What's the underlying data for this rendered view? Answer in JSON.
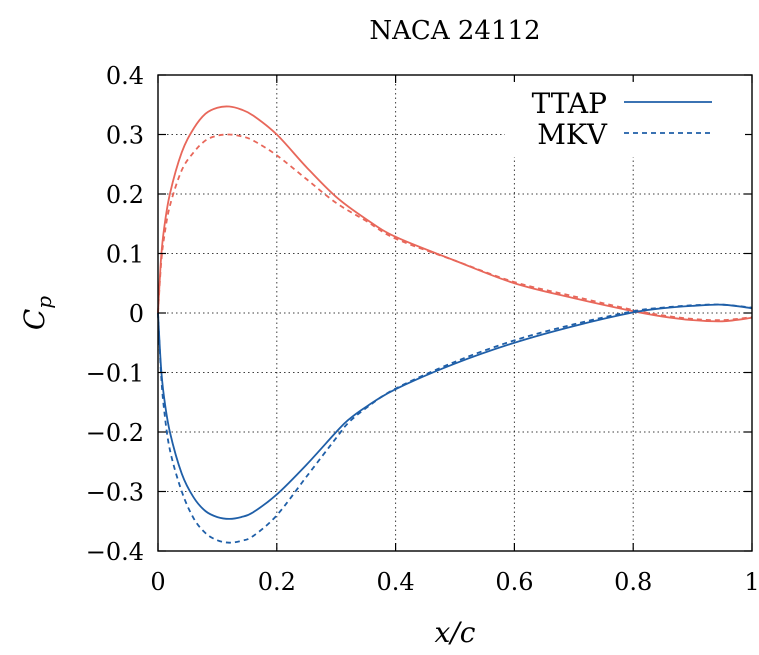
{
  "chart_data": {
    "type": "line",
    "title": "NACA 24112",
    "xlabel": "x/c",
    "ylabel": "C_p",
    "xlim": [
      0,
      1
    ],
    "ylim": [
      -0.4,
      0.4
    ],
    "x_ticks": [
      0,
      0.2,
      0.4,
      0.6,
      0.8,
      1
    ],
    "x_tick_labels": [
      "0",
      "0.2",
      "0.4",
      "0.6",
      "0.8",
      "1"
    ],
    "y_ticks": [
      -0.4,
      -0.3,
      -0.2,
      -0.1,
      0,
      0.1,
      0.2,
      0.3,
      0.4
    ],
    "y_tick_labels": [
      "−0.4",
      "−0.3",
      "−0.2",
      "−0.1",
      "0",
      "0.1",
      "0.2",
      "0.3",
      "0.4"
    ],
    "grid": true,
    "legend_position": "top-right",
    "legend": [
      {
        "label": "TTAP",
        "style": "solid",
        "color": "#1f5fa8"
      },
      {
        "label": "MKV",
        "style": "dashed",
        "color": "#1f5fa8"
      }
    ],
    "colors": {
      "upper": "#e8675a",
      "lower": "#1f5fa8"
    },
    "series": [
      {
        "method": "TTAP",
        "surface": "upper",
        "style": "solid",
        "color": "#e8675a",
        "x": [
          0,
          0.005,
          0.01,
          0.02,
          0.04,
          0.06,
          0.08,
          0.1,
          0.12,
          0.14,
          0.16,
          0.2,
          0.25,
          0.3,
          0.35,
          0.4,
          0.5,
          0.6,
          0.7,
          0.8,
          0.85,
          0.9,
          0.95,
          1.0
        ],
        "y": [
          0,
          0.09,
          0.14,
          0.2,
          0.27,
          0.31,
          0.335,
          0.345,
          0.347,
          0.342,
          0.332,
          0.3,
          0.245,
          0.195,
          0.158,
          0.128,
          0.088,
          0.05,
          0.025,
          0.003,
          -0.006,
          -0.012,
          -0.014,
          -0.008
        ]
      },
      {
        "method": "MKV",
        "surface": "upper",
        "style": "dashed",
        "color": "#e8675a",
        "x": [
          0,
          0.005,
          0.01,
          0.02,
          0.04,
          0.06,
          0.08,
          0.1,
          0.12,
          0.14,
          0.16,
          0.2,
          0.25,
          0.3,
          0.35,
          0.4,
          0.5,
          0.6,
          0.7,
          0.8,
          0.85,
          0.9,
          0.95,
          1.0
        ],
        "y": [
          0,
          0.08,
          0.125,
          0.18,
          0.24,
          0.27,
          0.29,
          0.298,
          0.3,
          0.297,
          0.29,
          0.265,
          0.225,
          0.185,
          0.155,
          0.125,
          0.088,
          0.052,
          0.028,
          0.005,
          -0.004,
          -0.01,
          -0.012,
          -0.007
        ]
      },
      {
        "method": "TTAP",
        "surface": "lower",
        "style": "solid",
        "color": "#1f5fa8",
        "x": [
          0,
          0.005,
          0.01,
          0.02,
          0.04,
          0.06,
          0.08,
          0.1,
          0.12,
          0.14,
          0.16,
          0.2,
          0.25,
          0.3,
          0.32,
          0.35,
          0.4,
          0.5,
          0.6,
          0.7,
          0.8,
          0.85,
          0.9,
          0.95,
          1.0
        ],
        "y": [
          0,
          -0.09,
          -0.14,
          -0.2,
          -0.27,
          -0.31,
          -0.333,
          -0.343,
          -0.346,
          -0.343,
          -0.335,
          -0.305,
          -0.255,
          -0.2,
          -0.18,
          -0.158,
          -0.128,
          -0.085,
          -0.05,
          -0.022,
          0.001,
          0.008,
          0.012,
          0.014,
          0.008
        ]
      },
      {
        "method": "MKV",
        "surface": "lower",
        "style": "dashed",
        "color": "#1f5fa8",
        "x": [
          0,
          0.005,
          0.01,
          0.02,
          0.04,
          0.06,
          0.08,
          0.1,
          0.12,
          0.14,
          0.16,
          0.2,
          0.25,
          0.3,
          0.32,
          0.35,
          0.4,
          0.5,
          0.6,
          0.7,
          0.8,
          0.85,
          0.9,
          0.95,
          1.0
        ],
        "y": [
          0,
          -0.1,
          -0.16,
          -0.23,
          -0.3,
          -0.345,
          -0.37,
          -0.382,
          -0.386,
          -0.383,
          -0.375,
          -0.34,
          -0.275,
          -0.21,
          -0.185,
          -0.16,
          -0.127,
          -0.082,
          -0.046,
          -0.019,
          0.003,
          0.009,
          0.013,
          0.014,
          0.009
        ]
      }
    ]
  }
}
